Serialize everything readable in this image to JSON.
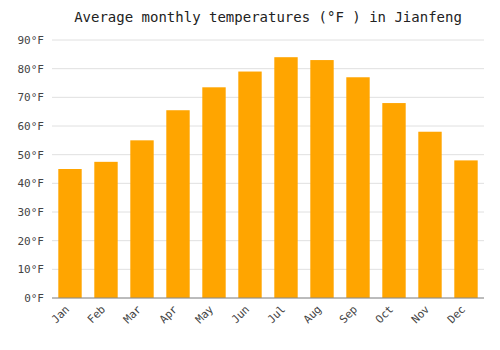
{
  "chart_data": {
    "type": "bar",
    "title": "Average monthly temperatures (°F ) in Jianfeng",
    "categories": [
      "Jan",
      "Feb",
      "Mar",
      "Apr",
      "May",
      "Jun",
      "Jul",
      "Aug",
      "Sep",
      "Oct",
      "Nov",
      "Dec"
    ],
    "values": [
      45,
      47.5,
      55,
      65.5,
      73.5,
      79,
      84,
      83,
      77,
      68,
      58,
      48
    ],
    "color": "#FFA500",
    "ylim": [
      0,
      90
    ],
    "yticks": [
      {
        "value": 0,
        "label": "0°F"
      },
      {
        "value": 10,
        "label": "10°F"
      },
      {
        "value": 20,
        "label": "20°F"
      },
      {
        "value": 30,
        "label": "30°F"
      },
      {
        "value": 40,
        "label": "40°F"
      },
      {
        "value": 50,
        "label": "50°F"
      },
      {
        "value": 60,
        "label": "60°F"
      },
      {
        "value": 70,
        "label": "70°F"
      },
      {
        "value": 80,
        "label": "80°F"
      },
      {
        "value": 90,
        "label": "90°F"
      }
    ],
    "grid": true
  }
}
